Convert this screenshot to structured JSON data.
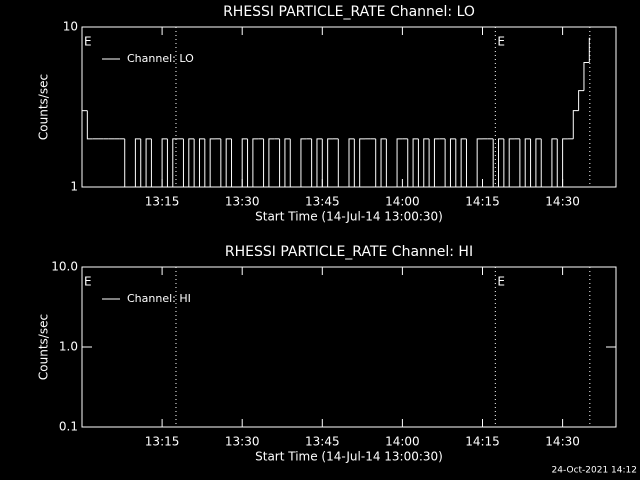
{
  "chart_data": [
    {
      "type": "line",
      "title": "RHESSI PARTICLE_RATE Channel: LO",
      "xlabel": "Start Time (14-Jul-14 13:00:30)",
      "ylabel": "Counts/sec",
      "xlim": [
        0,
        100
      ],
      "xticks": [
        {
          "value": 15,
          "label": "13:15"
        },
        {
          "value": 30,
          "label": "13:30"
        },
        {
          "value": 45,
          "label": "13:45"
        },
        {
          "value": 60,
          "label": "14:00"
        },
        {
          "value": 75,
          "label": "14:15"
        },
        {
          "value": 90,
          "label": "14:30"
        }
      ],
      "ylim": [
        1,
        10
      ],
      "yticks": [
        1,
        10
      ],
      "log_y": true,
      "vlines": [
        17.6,
        77.4,
        95.1
      ],
      "annotations": [
        {
          "text": "E",
          "x": 0
        },
        {
          "text": "E",
          "x": 77.4
        }
      ],
      "series": [
        {
          "name": "Channel: LO",
          "color": "#ffffff",
          "x": [
            0,
            1,
            2,
            3,
            4,
            5,
            6,
            7,
            8,
            9,
            10,
            11,
            12,
            13,
            14,
            15,
            16,
            17,
            18,
            19,
            20,
            21,
            22,
            23,
            24,
            25,
            26,
            27,
            28,
            29,
            30,
            31,
            32,
            33,
            34,
            35,
            36,
            37,
            38,
            39,
            40,
            41,
            42,
            43,
            44,
            45,
            46,
            47,
            48,
            49,
            50,
            51,
            52,
            53,
            54,
            55,
            56,
            57,
            58,
            59,
            60,
            61,
            62,
            63,
            64,
            65,
            66,
            67,
            68,
            69,
            70,
            71,
            72,
            73,
            74,
            75,
            76,
            77,
            78,
            79,
            80,
            81,
            82,
            83,
            84,
            85,
            86,
            87,
            88,
            89,
            90,
            91,
            92,
            93,
            94,
            95
          ],
          "values": [
            3,
            2,
            2,
            2,
            2,
            2,
            2,
            2,
            1,
            1,
            2,
            1,
            2,
            1,
            1,
            2,
            1,
            2,
            2,
            1,
            2,
            1,
            2,
            1,
            2,
            2,
            1,
            2,
            1,
            1,
            2,
            1,
            2,
            2,
            1,
            2,
            2,
            1,
            2,
            1,
            1,
            2,
            2,
            1,
            2,
            1,
            2,
            2,
            1,
            1,
            2,
            1,
            2,
            2,
            2,
            1,
            2,
            1,
            1,
            2,
            2,
            1,
            2,
            1,
            2,
            1,
            2,
            2,
            1,
            2,
            1,
            2,
            1,
            1,
            2,
            2,
            2,
            1,
            2,
            1,
            2,
            2,
            1,
            2,
            1,
            2,
            1,
            1,
            2,
            1,
            2,
            2,
            3,
            4,
            6,
            8.5
          ]
        }
      ]
    },
    {
      "type": "line",
      "title": "RHESSI PARTICLE_RATE Channel: HI",
      "xlabel": "Start Time (14-Jul-14 13:00:30)",
      "ylabel": "Counts/sec",
      "xlim": [
        0,
        100
      ],
      "xticks": [
        {
          "value": 15,
          "label": "13:15"
        },
        {
          "value": 30,
          "label": "13:30"
        },
        {
          "value": 45,
          "label": "13:45"
        },
        {
          "value": 60,
          "label": "14:00"
        },
        {
          "value": 75,
          "label": "14:15"
        },
        {
          "value": 90,
          "label": "14:30"
        }
      ],
      "ylim": [
        0.1,
        10
      ],
      "yticks": [
        0.1,
        {
          "value": 1,
          "label": "1.0"
        },
        {
          "value": 10,
          "label": "10.0"
        }
      ],
      "log_y": true,
      "vlines": [
        17.6,
        77.4,
        95.1
      ],
      "annotations": [
        {
          "text": "E",
          "x": 0
        },
        {
          "text": "E",
          "x": 77.4
        }
      ],
      "series": [
        {
          "name": "Channel: HI",
          "color": "#ffffff",
          "x": [],
          "values": []
        }
      ]
    }
  ],
  "footer": "24-Oct-2021 14:12"
}
